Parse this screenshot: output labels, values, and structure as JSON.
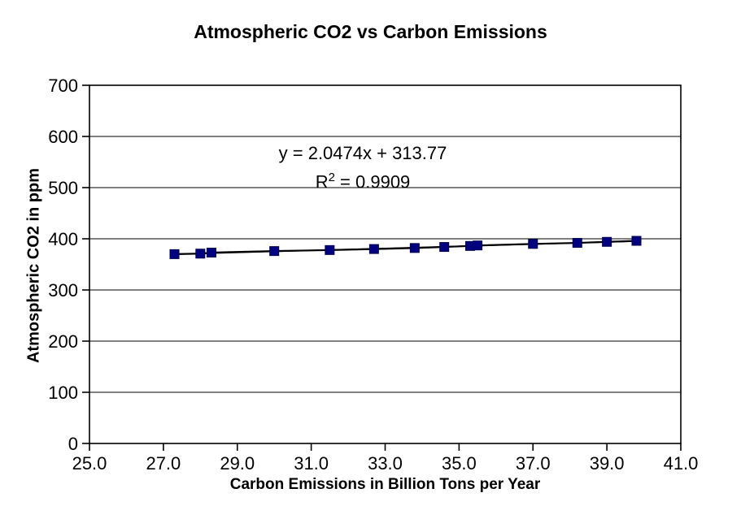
{
  "chart_data": {
    "type": "scatter",
    "title": "Atmospheric CO2 vs Carbon Emissions",
    "xlabel": "Carbon Emissions in Billion Tons per Year",
    "ylabel": "Atmospheric CO2 in ppm",
    "xlim": [
      25.0,
      41.0
    ],
    "ylim": [
      0,
      700
    ],
    "x_tick_values": [
      25,
      27,
      29,
      31,
      33,
      35,
      37,
      39,
      41
    ],
    "x_tick_labels": [
      "25.0",
      "27.0",
      "29.0",
      "31.0",
      "33.0",
      "35.0",
      "37.0",
      "39.0",
      "41.0"
    ],
    "y_tick_values": [
      0,
      100,
      200,
      300,
      400,
      500,
      600,
      700
    ],
    "y_tick_labels": [
      "0",
      "100",
      "200",
      "300",
      "400",
      "500",
      "600",
      "700"
    ],
    "grid": "horizontal",
    "legend": "none",
    "series": [
      {
        "name": "Atmospheric CO2 vs Carbon Emissions",
        "marker": "square",
        "marker_color": "#000080",
        "marker_edge_color": "#00004d",
        "line_color": "#000000",
        "points": [
          [
            27.3,
            370
          ],
          [
            28.0,
            371
          ],
          [
            28.3,
            373
          ],
          [
            30.0,
            376
          ],
          [
            31.5,
            378
          ],
          [
            32.7,
            380
          ],
          [
            33.8,
            382
          ],
          [
            34.6,
            384
          ],
          [
            35.3,
            386
          ],
          [
            35.5,
            387
          ],
          [
            37.0,
            390
          ],
          [
            38.2,
            392
          ],
          [
            39.0,
            394
          ],
          [
            39.8,
            396
          ]
        ]
      }
    ],
    "trendline": {
      "slope": 2.0474,
      "intercept": 313.77,
      "equation": "y = 2.0474x + 313.77",
      "r2": 0.9909
    }
  },
  "annotation": {
    "equation": "y = 2.0474x + 313.77",
    "r2_base": "R",
    "r2_sup": "2",
    "r2_rest": " = 0.9909"
  },
  "colors": {
    "background": "#ffffff",
    "text": "#000000",
    "axis": "#000000",
    "gridline": "#000000",
    "marker": "#000080",
    "line": "#000000"
  }
}
